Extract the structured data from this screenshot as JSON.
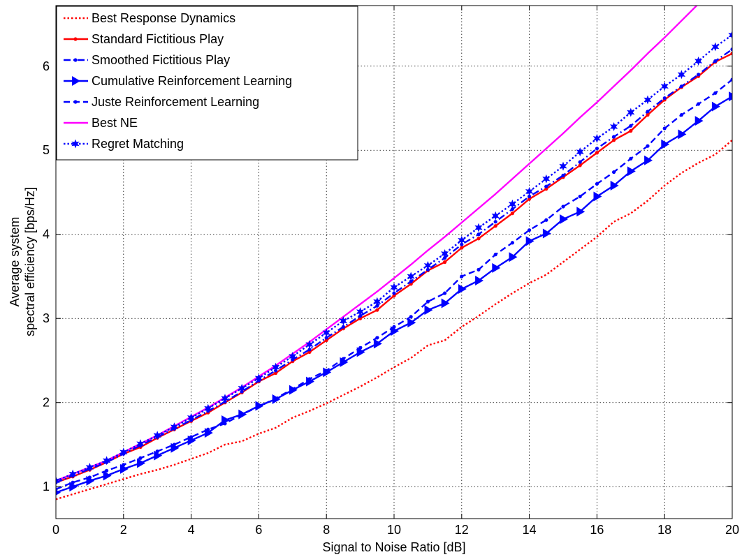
{
  "chart_data": {
    "type": "line",
    "xlabel": "Signal to Noise Ratio [dB]",
    "ylabel_lines": [
      "Average system",
      "spectral efficiency [bps/Hz]"
    ],
    "xlim": [
      0,
      20
    ],
    "ylim": [
      0.62,
      6.72
    ],
    "xticks": [
      0,
      2,
      4,
      6,
      8,
      10,
      12,
      14,
      16,
      18,
      20
    ],
    "yticks": [
      1,
      2,
      3,
      4,
      5,
      6
    ],
    "grid": true,
    "legend_position": "top-left",
    "x": [
      0,
      0.5,
      1,
      1.5,
      2,
      2.5,
      3,
      3.5,
      4,
      4.5,
      5,
      5.5,
      6,
      6.5,
      7,
      7.5,
      8,
      8.5,
      9,
      9.5,
      10,
      10.5,
      11,
      11.5,
      12,
      12.5,
      13,
      13.5,
      14,
      14.5,
      15,
      15.5,
      16,
      16.5,
      17,
      17.5,
      18,
      18.5,
      19,
      19.5,
      20
    ],
    "series": [
      {
        "name": "Best Response Dynamics",
        "color": "#ff0000",
        "dash": "dotted",
        "marker": "none",
        "values": [
          0.85,
          0.91,
          0.97,
          1.03,
          1.09,
          1.15,
          1.2,
          1.26,
          1.33,
          1.4,
          1.5,
          1.54,
          1.63,
          1.7,
          1.82,
          1.9,
          1.99,
          2.09,
          2.19,
          2.3,
          2.42,
          2.53,
          2.68,
          2.74,
          2.9,
          3.03,
          3.17,
          3.3,
          3.42,
          3.52,
          3.67,
          3.82,
          3.97,
          4.15,
          4.25,
          4.4,
          4.58,
          4.73,
          4.85,
          4.95,
          5.12
        ]
      },
      {
        "name": "Standard Fictitious Play",
        "color": "#ff0000",
        "dash": "solid",
        "marker": "dot",
        "values": [
          1.05,
          1.12,
          1.2,
          1.29,
          1.39,
          1.47,
          1.58,
          1.68,
          1.78,
          1.88,
          2.0,
          2.12,
          2.25,
          2.35,
          2.49,
          2.6,
          2.74,
          2.88,
          3.0,
          3.1,
          3.27,
          3.41,
          3.57,
          3.67,
          3.84,
          3.95,
          4.1,
          4.25,
          4.42,
          4.54,
          4.68,
          4.82,
          4.97,
          5.12,
          5.23,
          5.42,
          5.6,
          5.75,
          5.88,
          6.05,
          6.15
        ]
      },
      {
        "name": "Smoothed Fictitious Play",
        "color": "#0000ff",
        "dash": "dashdot",
        "marker": "dot",
        "values": [
          1.05,
          1.13,
          1.21,
          1.29,
          1.39,
          1.49,
          1.59,
          1.69,
          1.79,
          1.9,
          2.01,
          2.13,
          2.26,
          2.38,
          2.51,
          2.63,
          2.77,
          2.9,
          3.03,
          3.15,
          3.3,
          3.44,
          3.58,
          3.72,
          3.88,
          4.0,
          4.15,
          4.3,
          4.45,
          4.57,
          4.7,
          4.86,
          5.02,
          5.16,
          5.29,
          5.46,
          5.62,
          5.76,
          5.9,
          6.06,
          6.2
        ]
      },
      {
        "name": "Cumulative Reinforcement Learning",
        "color": "#0000ff",
        "dash": "solid",
        "marker": "triangle-right",
        "values": [
          0.93,
          1.0,
          1.07,
          1.13,
          1.21,
          1.28,
          1.37,
          1.46,
          1.55,
          1.64,
          1.79,
          1.86,
          1.96,
          2.04,
          2.15,
          2.25,
          2.36,
          2.48,
          2.6,
          2.7,
          2.85,
          2.95,
          3.1,
          3.18,
          3.35,
          3.45,
          3.6,
          3.73,
          3.92,
          4.01,
          4.18,
          4.27,
          4.45,
          4.58,
          4.75,
          4.88,
          5.07,
          5.19,
          5.35,
          5.52,
          5.64
        ]
      },
      {
        "name": "Juste Reinforcement Learning",
        "color": "#0000ff",
        "dash": "dashed",
        "marker": "dot",
        "values": [
          0.97,
          1.05,
          1.11,
          1.19,
          1.26,
          1.34,
          1.42,
          1.5,
          1.59,
          1.68,
          1.75,
          1.86,
          1.95,
          2.05,
          2.16,
          2.28,
          2.38,
          2.52,
          2.65,
          2.77,
          2.9,
          3.02,
          3.2,
          3.3,
          3.5,
          3.58,
          3.76,
          3.9,
          4.05,
          4.17,
          4.33,
          4.45,
          4.6,
          4.74,
          4.9,
          5.05,
          5.26,
          5.42,
          5.55,
          5.68,
          5.84
        ]
      },
      {
        "name": "Best NE",
        "color": "#ff00ff",
        "dash": "solid",
        "marker": "none",
        "values": [
          1.07,
          1.15,
          1.23,
          1.31,
          1.41,
          1.51,
          1.61,
          1.72,
          1.83,
          1.94,
          2.06,
          2.18,
          2.31,
          2.44,
          2.58,
          2.72,
          2.87,
          3.02,
          3.17,
          3.32,
          3.48,
          3.64,
          3.81,
          3.97,
          4.14,
          4.31,
          4.48,
          4.66,
          4.84,
          5.02,
          5.2,
          5.39,
          5.57,
          5.76,
          5.95,
          6.15,
          6.34,
          6.54,
          6.74,
          6.94,
          7.14
        ]
      },
      {
        "name": "Regret Matching",
        "color": "#0000ff",
        "dash": "dotted",
        "marker": "star",
        "values": [
          1.07,
          1.15,
          1.23,
          1.31,
          1.41,
          1.51,
          1.61,
          1.71,
          1.82,
          1.93,
          2.05,
          2.17,
          2.29,
          2.42,
          2.55,
          2.69,
          2.83,
          2.97,
          3.08,
          3.2,
          3.37,
          3.5,
          3.63,
          3.77,
          3.93,
          4.08,
          4.22,
          4.36,
          4.51,
          4.66,
          4.81,
          4.98,
          5.14,
          5.28,
          5.45,
          5.6,
          5.76,
          5.9,
          6.06,
          6.23,
          6.37
        ]
      }
    ]
  }
}
